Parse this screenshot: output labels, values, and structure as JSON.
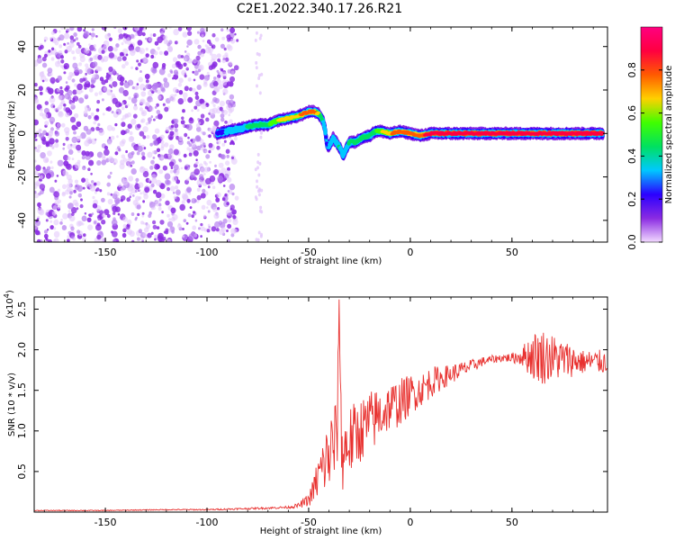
{
  "title": "C2E1.2022.340.17.26.R21",
  "chart_data": [
    {
      "type": "heatmap",
      "xlabel": "Height of straight line (km)",
      "ylabel": "Frequency (Hz)",
      "xlim": [
        -185,
        97
      ],
      "ylim": [
        -50,
        49
      ],
      "x_ticks": [
        -150,
        -100,
        -50,
        0,
        50
      ],
      "y_ticks": [
        -40,
        -20,
        0,
        20,
        40
      ],
      "grid": false,
      "colorbar": {
        "label": "Normalized spectral amplitude",
        "range": [
          0,
          1
        ],
        "ticks": [
          "0.0",
          "0.2",
          "0.4",
          "0.6",
          "0.8"
        ],
        "colors": [
          "#f2d9ff",
          "#8a2be2",
          "#2b00ff",
          "#00c8ff",
          "#00e060",
          "#40ff00",
          "#ffd000",
          "#ff5a00",
          "#ff0040",
          "#ff0080"
        ]
      },
      "noise_region_x": [
        -185,
        -85
      ],
      "ridge": {
        "x": [
          -95,
          -90,
          -85,
          -80,
          -75,
          -70,
          -65,
          -60,
          -55,
          -50,
          -47,
          -45,
          -43,
          -42,
          -41,
          -40,
          -38,
          -35,
          -33,
          -30,
          -27,
          -24,
          -20,
          -17,
          -14,
          -10,
          -5,
          0,
          5,
          10,
          20,
          30,
          40,
          50,
          60,
          70,
          80,
          90,
          95
        ],
        "y": [
          0,
          1,
          2,
          3,
          4,
          4,
          6,
          7,
          8,
          10,
          10,
          9,
          6,
          2,
          -5,
          -6,
          -2,
          -6,
          -10,
          -4,
          -4,
          -2,
          -1,
          1,
          1,
          0,
          1,
          0,
          -1,
          0,
          0,
          0,
          0,
          0,
          0,
          0,
          0,
          0,
          0
        ],
        "amplitude": [
          0.25,
          0.35,
          0.4,
          0.45,
          0.5,
          0.55,
          0.6,
          0.6,
          0.65,
          0.7,
          0.7,
          0.6,
          0.45,
          0.35,
          0.3,
          0.35,
          0.4,
          0.45,
          0.4,
          0.45,
          0.45,
          0.5,
          0.55,
          0.55,
          0.6,
          0.65,
          0.7,
          0.75,
          0.75,
          0.8,
          0.8,
          0.8,
          0.85,
          0.85,
          0.85,
          0.85,
          0.85,
          0.85,
          0.85
        ]
      }
    },
    {
      "type": "line",
      "xlabel": "Height of straight line (km)",
      "ylabel": "SNR (10 * v/v)",
      "y_multiplier_label": "(x10",
      "y_multiplier_exp": "4",
      "y_multiplier_close": ")",
      "xlim": [
        -185,
        97
      ],
      "ylim": [
        0,
        2.65
      ],
      "x_ticks": [
        -150,
        -100,
        -50,
        0,
        50
      ],
      "y_ticks": [
        0.5,
        1.0,
        1.5,
        2.0,
        2.5
      ],
      "line_color": "#e8312f",
      "series": [
        {
          "x": [
            -185,
            -170,
            -150,
            -120,
            -100,
            -85,
            -70,
            -60,
            -55,
            -50,
            -48,
            -45,
            -42,
            -40,
            -38,
            -36,
            -35,
            -34,
            -33,
            -31,
            -28,
            -25,
            -20,
            -15,
            -10,
            -5,
            0,
            5,
            10,
            15,
            20,
            25,
            30,
            35,
            40,
            45,
            50,
            55,
            60,
            65,
            70,
            75,
            80,
            85,
            90,
            97
          ],
          "y": [
            0.02,
            0.02,
            0.02,
            0.03,
            0.03,
            0.04,
            0.05,
            0.06,
            0.08,
            0.15,
            0.25,
            0.45,
            0.6,
            0.7,
            0.8,
            0.9,
            2.65,
            0.9,
            0.7,
            0.85,
            0.9,
            1.0,
            1.1,
            1.2,
            1.3,
            1.35,
            1.45,
            1.5,
            1.6,
            1.65,
            1.7,
            1.75,
            1.8,
            1.85,
            1.88,
            1.9,
            1.9,
            1.92,
            1.93,
            1.92,
            1.9,
            1.88,
            1.87,
            1.85,
            1.85,
            1.85
          ],
          "noise_amplitude": [
            0.005,
            0.005,
            0.005,
            0.006,
            0.007,
            0.01,
            0.012,
            0.015,
            0.03,
            0.08,
            0.15,
            0.3,
            0.4,
            0.5,
            0.55,
            0.55,
            0.1,
            0.55,
            0.5,
            0.45,
            0.45,
            0.4,
            0.4,
            0.35,
            0.3,
            0.3,
            0.25,
            0.2,
            0.2,
            0.15,
            0.12,
            0.1,
            0.08,
            0.06,
            0.05,
            0.05,
            0.06,
            0.12,
            0.3,
            0.35,
            0.3,
            0.25,
            0.2,
            0.15,
            0.15,
            0.15
          ]
        }
      ]
    }
  ]
}
